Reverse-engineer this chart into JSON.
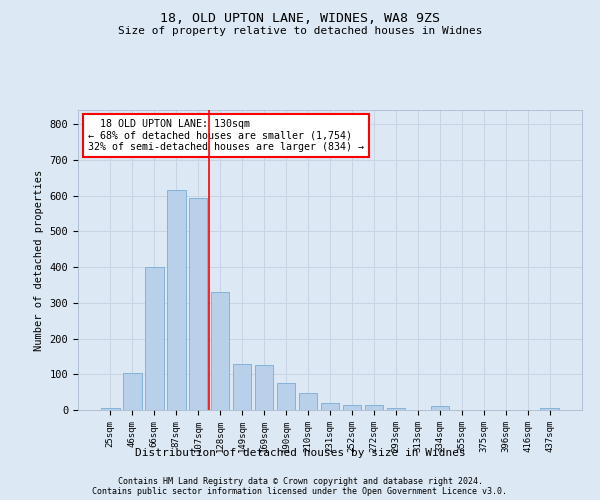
{
  "title1": "18, OLD UPTON LANE, WIDNES, WA8 9ZS",
  "title2": "Size of property relative to detached houses in Widnes",
  "xlabel": "Distribution of detached houses by size in Widnes",
  "ylabel": "Number of detached properties",
  "categories": [
    "25sqm",
    "46sqm",
    "66sqm",
    "87sqm",
    "107sqm",
    "128sqm",
    "149sqm",
    "169sqm",
    "190sqm",
    "210sqm",
    "231sqm",
    "252sqm",
    "272sqm",
    "293sqm",
    "313sqm",
    "334sqm",
    "355sqm",
    "375sqm",
    "396sqm",
    "416sqm",
    "437sqm"
  ],
  "values": [
    5,
    105,
    400,
    615,
    595,
    330,
    130,
    125,
    75,
    48,
    20,
    15,
    15,
    5,
    0,
    10,
    0,
    0,
    0,
    0,
    5
  ],
  "bar_color": "#b8d0ea",
  "bar_edge_color": "#7aadd4",
  "red_line_index": 5,
  "annotation_line1": "  18 OLD UPTON LANE: 130sqm",
  "annotation_line2": "← 68% of detached houses are smaller (1,754)",
  "annotation_line3": "32% of semi-detached houses are larger (834) →",
  "ylim": [
    0,
    840
  ],
  "yticks": [
    0,
    100,
    200,
    300,
    400,
    500,
    600,
    700,
    800
  ],
  "grid_color": "#c8d4e4",
  "bg_color": "#dce8f4",
  "footer1": "Contains HM Land Registry data © Crown copyright and database right 2024.",
  "footer2": "Contains public sector information licensed under the Open Government Licence v3.0."
}
